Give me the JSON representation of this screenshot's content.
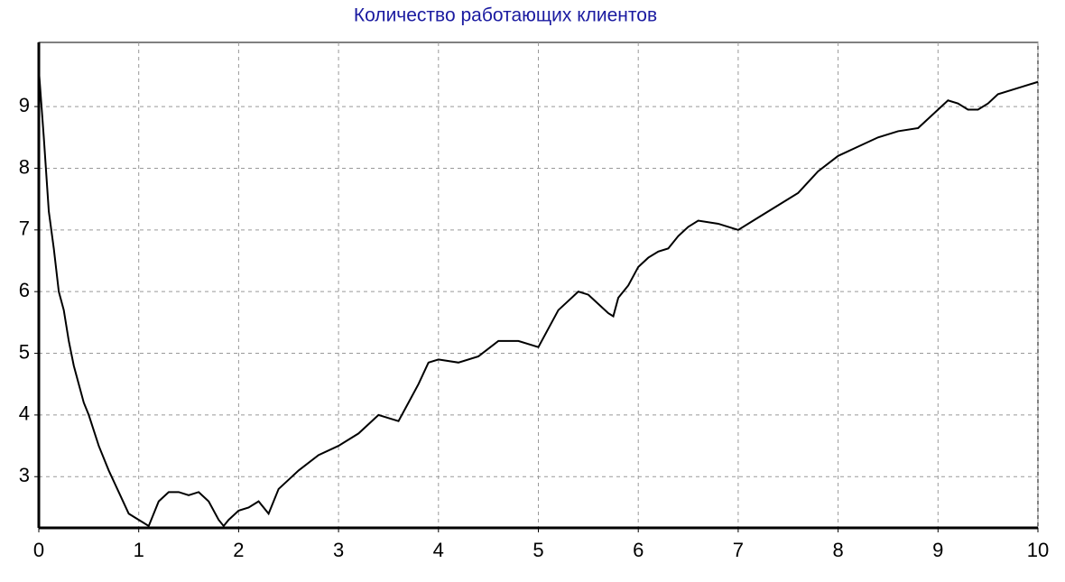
{
  "chart_data": {
    "type": "line",
    "title": "Количество работающих клиентов",
    "x": [
      0,
      0.05,
      0.1,
      0.15,
      0.2,
      0.25,
      0.3,
      0.35,
      0.4,
      0.45,
      0.5,
      0.6,
      0.7,
      0.8,
      0.9,
      1.0,
      1.05,
      1.1,
      1.2,
      1.3,
      1.4,
      1.5,
      1.6,
      1.7,
      1.8,
      1.85,
      1.9,
      2.0,
      2.1,
      2.2,
      2.3,
      2.4,
      2.5,
      2.6,
      2.8,
      3.0,
      3.2,
      3.4,
      3.5,
      3.6,
      3.7,
      3.8,
      3.9,
      4.0,
      4.2,
      4.4,
      4.6,
      4.8,
      5.0,
      5.1,
      5.2,
      5.3,
      5.4,
      5.5,
      5.6,
      5.7,
      5.75,
      5.8,
      5.9,
      6.0,
      6.1,
      6.2,
      6.3,
      6.4,
      6.5,
      6.6,
      6.8,
      7.0,
      7.2,
      7.4,
      7.6,
      7.8,
      8.0,
      8.2,
      8.4,
      8.6,
      8.8,
      9.0,
      9.1,
      9.2,
      9.3,
      9.4,
      9.5,
      9.6,
      9.8,
      10.0
    ],
    "series": [
      {
        "color": "#000000",
        "values": [
          9.6,
          8.5,
          7.3,
          6.7,
          6.0,
          5.7,
          5.2,
          4.8,
          4.5,
          4.2,
          4.0,
          3.5,
          3.1,
          2.75,
          2.4,
          2.3,
          2.25,
          2.2,
          2.6,
          2.75,
          2.75,
          2.7,
          2.75,
          2.6,
          2.3,
          2.2,
          2.3,
          2.45,
          2.5,
          2.6,
          2.4,
          2.8,
          2.95,
          3.1,
          3.35,
          3.5,
          3.7,
          4.0,
          3.95,
          3.9,
          4.2,
          4.5,
          4.85,
          4.9,
          4.85,
          4.95,
          5.2,
          5.2,
          5.1,
          5.4,
          5.7,
          5.85,
          6.0,
          5.95,
          5.8,
          5.65,
          5.6,
          5.9,
          6.1,
          6.4,
          6.55,
          6.65,
          6.7,
          6.9,
          7.05,
          7.15,
          7.1,
          7.0,
          7.2,
          7.4,
          7.6,
          7.95,
          8.2,
          8.35,
          8.5,
          8.6,
          8.65,
          8.95,
          9.1,
          9.05,
          8.95,
          8.95,
          9.05,
          9.2,
          9.3,
          9.4
        ]
      }
    ],
    "xlim": [
      0,
      10
    ],
    "xticks": [
      0,
      1,
      2,
      3,
      4,
      5,
      6,
      7,
      8,
      9,
      10
    ],
    "ylim": [
      2.17,
      10.04
    ],
    "yticks": [
      3,
      4,
      5,
      6,
      7,
      8,
      9
    ],
    "grid": true
  }
}
